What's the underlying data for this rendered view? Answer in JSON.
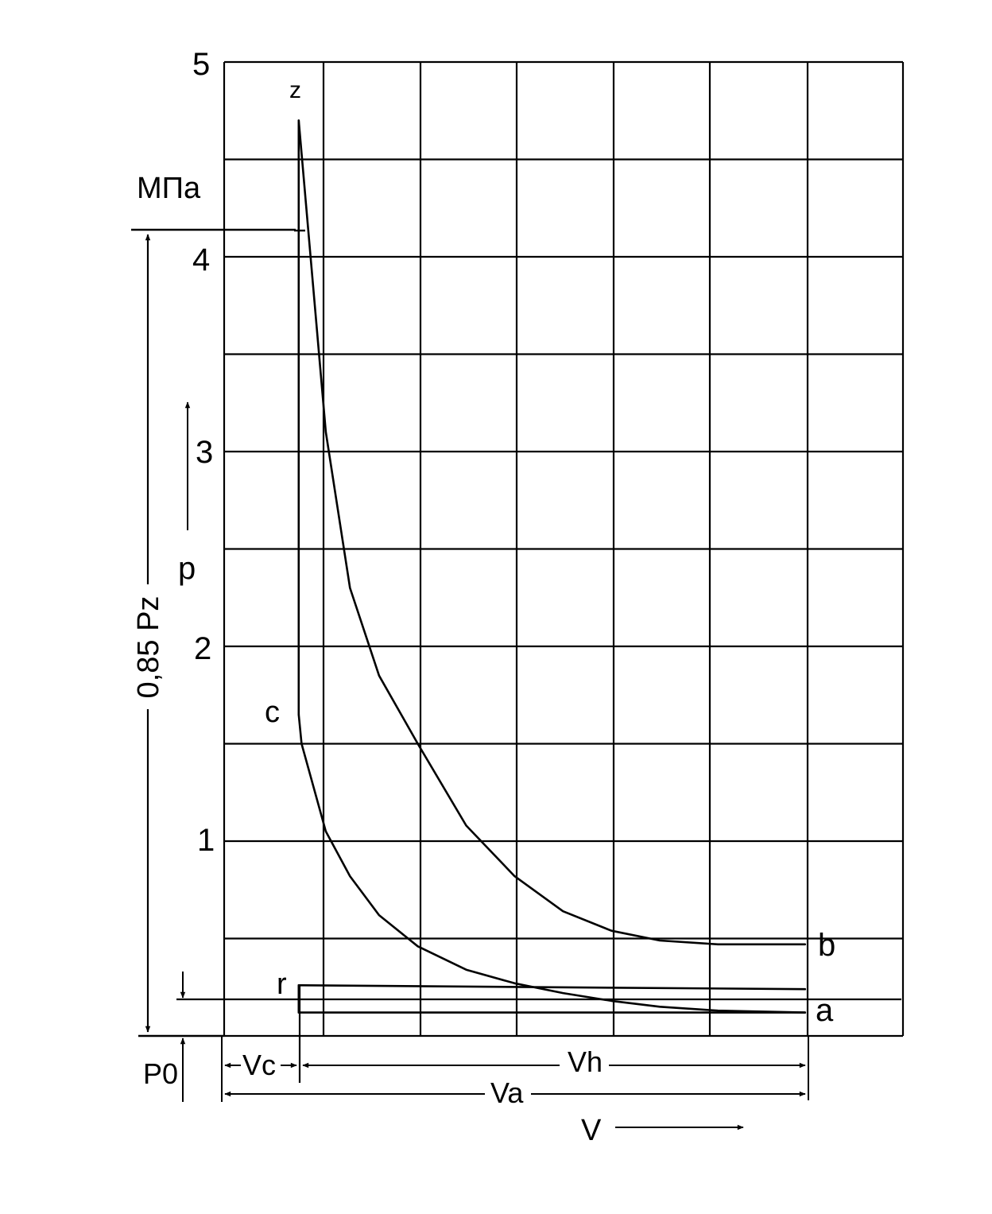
{
  "chart_data": {
    "type": "line",
    "title": "",
    "y_unit": "МПа",
    "y_axis_label": "p",
    "x_axis_label": "V",
    "y_ticks": [
      "5",
      "4",
      "3",
      "2",
      "1"
    ],
    "ylim": [
      0,
      5
    ],
    "grid": true,
    "point_labels": {
      "z": "z",
      "c": "c",
      "b": "b",
      "r": "r",
      "a": "a"
    },
    "dimension_labels": {
      "pz": "0,85 Pz",
      "p0": "P0",
      "vc": "Vc",
      "vh": "Vh",
      "va": "Va"
    },
    "series": [
      {
        "name": "c–z",
        "x": [
          0.77,
          0.77
        ],
        "y": [
          1.65,
          4.7
        ]
      },
      {
        "name": "z–b",
        "x": [
          0.77,
          1.05,
          1.3,
          1.6,
          2.0,
          2.5,
          3.0,
          3.5,
          4.0,
          4.5,
          5.1,
          6.0
        ],
        "y": [
          4.7,
          3.1,
          2.3,
          1.85,
          1.5,
          1.08,
          0.82,
          0.64,
          0.54,
          0.49,
          0.47,
          0.47
        ]
      },
      {
        "name": "c–a",
        "x": [
          0.77,
          0.8,
          1.05,
          1.3,
          1.6,
          2.0,
          2.5,
          3.0,
          3.5,
          4.0,
          4.5,
          5.1,
          6.0
        ],
        "y": [
          1.65,
          1.5,
          1.05,
          0.82,
          0.62,
          0.46,
          0.34,
          0.27,
          0.22,
          0.18,
          0.15,
          0.13,
          0.12
        ]
      },
      {
        "name": "r–a",
        "x": [
          0.77,
          0.77,
          6.0
        ],
        "y": [
          0.26,
          0.12,
          0.12
        ]
      },
      {
        "name": "r",
        "x": [
          0.77,
          6.0
        ],
        "y": [
          0.26,
          0.24
        ]
      }
    ]
  }
}
